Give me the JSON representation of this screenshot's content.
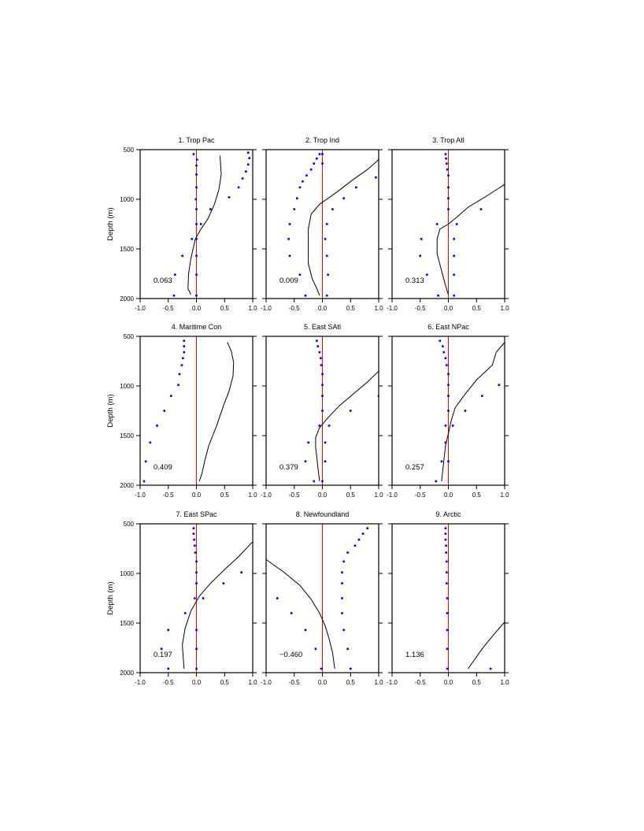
{
  "figure": {
    "ylabel": "Depth (m)",
    "xlim": [
      -1.0,
      1.0
    ],
    "ylim": [
      2000,
      500
    ],
    "x_ticks": [
      "-1.0",
      "-0.5",
      "0.0",
      "0.5",
      "1.0"
    ],
    "y_ticks": [
      "500",
      "1000",
      "1500",
      "2000"
    ],
    "colors": {
      "curve": "#000000",
      "dots": "#0000ff",
      "zero_line": "#ff0000",
      "axes": "#000000"
    }
  },
  "chart_data": [
    {
      "type": "line",
      "title": "1. Trop Pac",
      "annotation": "0.063",
      "curve": [
        [
          0.42,
          560
        ],
        [
          0.44,
          750
        ],
        [
          0.4,
          900
        ],
        [
          0.32,
          1050
        ],
        [
          0.2,
          1200
        ],
        [
          0.08,
          1300
        ],
        [
          -0.02,
          1400
        ],
        [
          -0.06,
          1500
        ],
        [
          -0.1,
          1600
        ],
        [
          -0.14,
          1750
        ],
        [
          -0.15,
          1900
        ],
        [
          -0.1,
          1960
        ]
      ],
      "dots": [
        [
          -0.05,
          545
        ],
        [
          0.92,
          530
        ],
        [
          0.94,
          585
        ],
        [
          0.92,
          650
        ],
        [
          0.88,
          720
        ],
        [
          0.82,
          790
        ],
        [
          0.75,
          880
        ],
        [
          0.58,
          980
        ],
        [
          -0.01,
          1000
        ],
        [
          0.01,
          600
        ],
        [
          0.0,
          660
        ],
        [
          0.0,
          750
        ],
        [
          0.0,
          880
        ],
        [
          0.25,
          1100
        ],
        [
          0.0,
          1100
        ],
        [
          0.08,
          1250
        ],
        [
          0.0,
          1250
        ],
        [
          -0.08,
          1400
        ],
        [
          0.0,
          1400
        ],
        [
          -0.25,
          1570
        ],
        [
          0.0,
          1570
        ],
        [
          -0.38,
          1760
        ],
        [
          0.0,
          1760
        ],
        [
          -0.4,
          1970
        ],
        [
          0.0,
          1970
        ]
      ]
    },
    {
      "type": "line",
      "title": "2. Trop Ind",
      "annotation": "0.009",
      "curve": [
        [
          1.0,
          600
        ],
        [
          0.8,
          700
        ],
        [
          0.55,
          800
        ],
        [
          0.25,
          930
        ],
        [
          -0.05,
          1050
        ],
        [
          -0.2,
          1150
        ],
        [
          -0.25,
          1300
        ],
        [
          -0.25,
          1450
        ],
        [
          -0.25,
          1650
        ],
        [
          -0.18,
          1800
        ],
        [
          -0.1,
          1900
        ],
        [
          -0.05,
          1970
        ]
      ],
      "dots": [
        [
          -0.05,
          545
        ],
        [
          -0.1,
          590
        ],
        [
          -0.15,
          640
        ],
        [
          -0.2,
          700
        ],
        [
          -0.28,
          760
        ],
        [
          -0.35,
          820
        ],
        [
          -0.4,
          880
        ],
        [
          -0.45,
          990
        ],
        [
          -0.5,
          1100
        ],
        [
          -0.58,
          1250
        ],
        [
          -0.6,
          1400
        ],
        [
          -0.58,
          1570
        ],
        [
          -0.4,
          1760
        ],
        [
          -0.3,
          1970
        ],
        [
          0.95,
          780
        ],
        [
          0.6,
          880
        ],
        [
          0.38,
          990
        ],
        [
          0.18,
          1100
        ],
        [
          0.08,
          1250
        ],
        [
          0.05,
          1400
        ],
        [
          0.08,
          1570
        ],
        [
          0.1,
          1760
        ],
        [
          0.08,
          1970
        ],
        [
          0.0,
          545
        ],
        [
          0.0,
          640
        ]
      ]
    },
    {
      "type": "line",
      "title": "3. Trop Atl",
      "annotation": "0.313",
      "curve": [
        [
          1.0,
          850
        ],
        [
          0.7,
          960
        ],
        [
          0.35,
          1080
        ],
        [
          0.15,
          1180
        ],
        [
          0.0,
          1250
        ],
        [
          -0.15,
          1300
        ],
        [
          -0.2,
          1400
        ],
        [
          -0.2,
          1550
        ],
        [
          -0.12,
          1720
        ],
        [
          -0.05,
          1870
        ],
        [
          0.0,
          1960
        ]
      ],
      "dots": [
        [
          -0.05,
          545
        ],
        [
          -0.04,
          590
        ],
        [
          -0.03,
          640
        ],
        [
          -0.02,
          700
        ],
        [
          0.0,
          760
        ],
        [
          0.0,
          880
        ],
        [
          0.0,
          990
        ],
        [
          0.0,
          1100
        ],
        [
          0.58,
          1100
        ],
        [
          0.15,
          1250
        ],
        [
          -0.2,
          1250
        ],
        [
          0.1,
          1400
        ],
        [
          -0.48,
          1400
        ],
        [
          0.1,
          1570
        ],
        [
          -0.5,
          1570
        ],
        [
          0.1,
          1760
        ],
        [
          -0.38,
          1760
        ],
        [
          0.1,
          1970
        ],
        [
          -0.18,
          1970
        ]
      ]
    },
    {
      "type": "line",
      "title": "4. Maritime Con",
      "annotation": "0.409",
      "curve": [
        [
          0.55,
          560
        ],
        [
          0.62,
          650
        ],
        [
          0.66,
          760
        ],
        [
          0.65,
          900
        ],
        [
          0.58,
          1050
        ],
        [
          0.48,
          1200
        ],
        [
          0.36,
          1400
        ],
        [
          0.22,
          1600
        ],
        [
          0.15,
          1750
        ],
        [
          0.1,
          1880
        ],
        [
          0.05,
          1960
        ]
      ],
      "dots": [
        [
          -0.22,
          545
        ],
        [
          -0.22,
          600
        ],
        [
          -0.22,
          660
        ],
        [
          -0.24,
          720
        ],
        [
          -0.26,
          790
        ],
        [
          -0.3,
          880
        ],
        [
          -0.32,
          990
        ],
        [
          -0.45,
          1100
        ],
        [
          -0.57,
          1250
        ],
        [
          -0.7,
          1400
        ],
        [
          -0.82,
          1570
        ],
        [
          -0.9,
          1760
        ],
        [
          -0.93,
          1960
        ]
      ]
    },
    {
      "type": "line",
      "title": "5. East SAtl",
      "annotation": "0.379",
      "curve": [
        [
          1.0,
          850
        ],
        [
          0.8,
          960
        ],
        [
          0.55,
          1080
        ],
        [
          0.3,
          1200
        ],
        [
          0.1,
          1320
        ],
        [
          -0.05,
          1420
        ],
        [
          -0.12,
          1520
        ],
        [
          -0.12,
          1620
        ],
        [
          -0.1,
          1720
        ],
        [
          -0.08,
          1820
        ],
        [
          -0.05,
          1960
        ]
      ],
      "dots": [
        [
          -0.1,
          545
        ],
        [
          -0.08,
          600
        ],
        [
          -0.05,
          660
        ],
        [
          -0.03,
          720
        ],
        [
          -0.02,
          790
        ],
        [
          0.0,
          880
        ],
        [
          0.0,
          990
        ],
        [
          0.0,
          1100
        ],
        [
          1.0,
          1100
        ],
        [
          0.0,
          1250
        ],
        [
          0.5,
          1250
        ],
        [
          -0.05,
          1400
        ],
        [
          0.12,
          1400
        ],
        [
          -0.25,
          1570
        ],
        [
          0.05,
          1570
        ],
        [
          -0.3,
          1760
        ],
        [
          0.05,
          1760
        ],
        [
          -0.15,
          1960
        ],
        [
          0.0,
          1960
        ]
      ]
    },
    {
      "type": "line",
      "title": "6. East NPac",
      "annotation": "0.257",
      "curve": [
        [
          1.0,
          560
        ],
        [
          0.85,
          660
        ],
        [
          0.78,
          790
        ],
        [
          0.5,
          940
        ],
        [
          0.3,
          1080
        ],
        [
          0.12,
          1220
        ],
        [
          0.05,
          1350
        ],
        [
          0.0,
          1480
        ],
        [
          -0.05,
          1600
        ],
        [
          -0.08,
          1750
        ],
        [
          -0.12,
          1960
        ]
      ],
      "dots": [
        [
          -0.15,
          545
        ],
        [
          -0.1,
          600
        ],
        [
          -0.08,
          660
        ],
        [
          -0.05,
          720
        ],
        [
          -0.03,
          790
        ],
        [
          0.0,
          880
        ],
        [
          0.0,
          990
        ],
        [
          0.9,
          990
        ],
        [
          0.6,
          1100
        ],
        [
          0.0,
          1100
        ],
        [
          0.3,
          1250
        ],
        [
          0.0,
          1250
        ],
        [
          0.08,
          1400
        ],
        [
          -0.05,
          1400
        ],
        [
          -0.05,
          1570
        ],
        [
          -0.12,
          1760
        ],
        [
          0.0,
          1760
        ],
        [
          -0.22,
          1960
        ]
      ]
    },
    {
      "type": "line",
      "title": "7. East SPac",
      "annotation": "0.197",
      "curve": [
        [
          1.0,
          680
        ],
        [
          0.75,
          830
        ],
        [
          0.5,
          960
        ],
        [
          0.25,
          1100
        ],
        [
          0.05,
          1230
        ],
        [
          -0.1,
          1380
        ],
        [
          -0.2,
          1550
        ],
        [
          -0.25,
          1720
        ],
        [
          -0.22,
          1960
        ]
      ],
      "dots": [
        [
          -0.05,
          545
        ],
        [
          -0.05,
          600
        ],
        [
          -0.04,
          660
        ],
        [
          -0.03,
          720
        ],
        [
          -0.02,
          790
        ],
        [
          0.0,
          880
        ],
        [
          0.8,
          990
        ],
        [
          0.0,
          990
        ],
        [
          0.48,
          1100
        ],
        [
          0.0,
          1100
        ],
        [
          0.12,
          1250
        ],
        [
          -0.03,
          1250
        ],
        [
          -0.2,
          1400
        ],
        [
          -0.5,
          1570
        ],
        [
          0.0,
          1570
        ],
        [
          -0.62,
          1760
        ],
        [
          0.0,
          1760
        ],
        [
          -0.5,
          1960
        ],
        [
          0.0,
          1960
        ]
      ]
    },
    {
      "type": "line",
      "title": "8. Newfoundland",
      "annotation": "-0.460",
      "curve": [
        [
          -1.0,
          860
        ],
        [
          -0.7,
          980
        ],
        [
          -0.4,
          1120
        ],
        [
          -0.2,
          1260
        ],
        [
          -0.05,
          1400
        ],
        [
          0.05,
          1530
        ],
        [
          0.12,
          1660
        ],
        [
          0.18,
          1800
        ],
        [
          0.22,
          1960
        ]
      ],
      "dots": [
        [
          0.8,
          545
        ],
        [
          0.72,
          600
        ],
        [
          0.65,
          660
        ],
        [
          0.58,
          720
        ],
        [
          0.45,
          790
        ],
        [
          0.38,
          880
        ],
        [
          0.35,
          990
        ],
        [
          0.35,
          1100
        ],
        [
          0.35,
          1250
        ],
        [
          0.35,
          1400
        ],
        [
          0.38,
          1570
        ],
        [
          0.45,
          1760
        ],
        [
          0.5,
          1960
        ],
        [
          -0.8,
          1250
        ],
        [
          -0.55,
          1400
        ],
        [
          -0.3,
          1570
        ],
        [
          -0.12,
          1760
        ],
        [
          -0.02,
          1960
        ]
      ]
    },
    {
      "type": "line",
      "title": "9. Arctic",
      "annotation": "1.136",
      "curve": [
        [
          1.0,
          1490
        ],
        [
          0.8,
          1620
        ],
        [
          0.6,
          1760
        ],
        [
          0.35,
          1960
        ]
      ],
      "dots": [
        [
          -0.05,
          545
        ],
        [
          -0.05,
          600
        ],
        [
          -0.05,
          660
        ],
        [
          -0.04,
          720
        ],
        [
          -0.04,
          790
        ],
        [
          -0.03,
          880
        ],
        [
          -0.03,
          990
        ],
        [
          -0.03,
          1100
        ],
        [
          -0.02,
          1250
        ],
        [
          -0.02,
          1400
        ],
        [
          -0.02,
          1570
        ],
        [
          -0.02,
          1760
        ],
        [
          -0.02,
          1960
        ],
        [
          0.75,
          1960
        ]
      ]
    }
  ]
}
